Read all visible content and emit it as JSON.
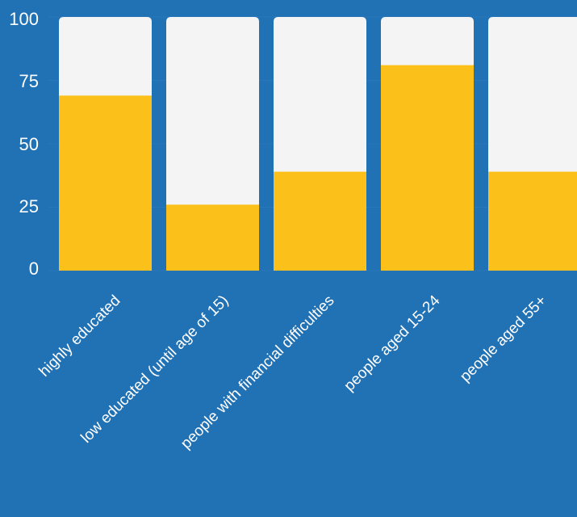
{
  "chart_data": {
    "type": "bar",
    "stacked_background": true,
    "categories": [
      "highly educated",
      "low educated (until age of 15)",
      "people with financial difficulties",
      "people aged 15-24",
      "people aged 55+"
    ],
    "values": [
      69,
      26,
      39,
      81,
      39
    ],
    "ylim": [
      0,
      100
    ],
    "yticks": [
      "0",
      "25",
      "50",
      "75",
      "100"
    ],
    "grid": true,
    "legend": "none"
  },
  "colors": {
    "background": "#2171b5",
    "bar_fill": "#fcc01a",
    "bar_track": "#f4f4f4",
    "gridline": "#2a78ba",
    "text": "#ffffff"
  }
}
